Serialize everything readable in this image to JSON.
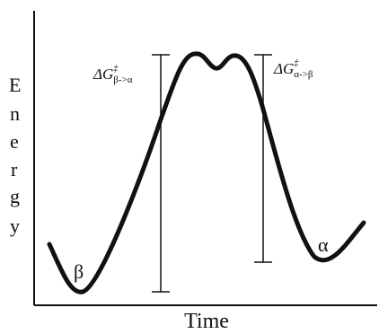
{
  "axes": {
    "x_label": "Time",
    "y_label_letters": [
      "E",
      "n",
      "e",
      "r",
      "g",
      "y"
    ]
  },
  "states": {
    "beta": "β",
    "alpha": "α"
  },
  "barriers": {
    "left": {
      "base": "ΔG",
      "sup": "‡",
      "sub": "β->α"
    },
    "right": {
      "base": "ΔG",
      "sup": "‡",
      "sub": "α->β"
    }
  },
  "colors": {
    "ink": "#111111",
    "background": "#ffffff"
  }
}
